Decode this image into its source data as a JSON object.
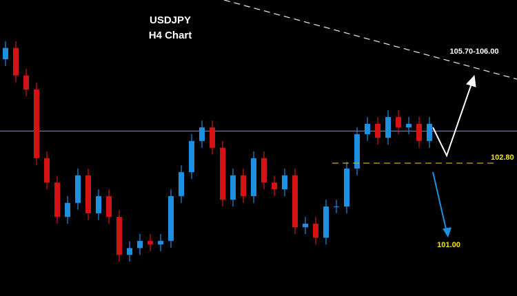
{
  "chart_data": {
    "type": "candlestick",
    "title": "USDJPY",
    "subtitle": "H4 Chart",
    "ylim": [
      99.86,
      106.41
    ],
    "up_color": "#1e90e0",
    "down_color": "#d41414",
    "open": [
      105.1,
      105.35,
      104.74,
      104.43,
      102.91,
      102.37,
      101.61,
      101.92,
      102.53,
      101.69,
      102.07,
      101.61,
      100.77,
      100.92,
      101.08,
      101.0,
      101.08,
      102.07,
      102.6,
      103.29,
      103.59,
      103.14,
      101.99,
      102.53,
      102.07,
      102.91,
      102.37,
      102.22,
      102.53,
      101.38,
      101.46,
      101.15,
      101.84,
      101.84,
      102.68,
      103.44,
      103.67,
      103.36,
      103.82,
      103.59,
      103.67,
      103.29
    ],
    "high": [
      105.5,
      105.5,
      104.89,
      104.58,
      103.06,
      102.52,
      102.07,
      102.68,
      102.68,
      102.22,
      102.22,
      101.76,
      101.07,
      101.23,
      101.23,
      101.23,
      102.22,
      102.75,
      103.44,
      103.74,
      103.74,
      103.29,
      102.68,
      102.68,
      103.06,
      103.06,
      102.52,
      102.68,
      102.68,
      101.61,
      101.61,
      101.99,
      101.99,
      102.83,
      103.59,
      103.82,
      103.82,
      103.97,
      103.97,
      103.82,
      103.82,
      103.82
    ],
    "low": [
      104.95,
      104.59,
      104.28,
      102.76,
      102.22,
      101.46,
      101.46,
      101.77,
      101.54,
      101.54,
      101.46,
      100.62,
      100.62,
      100.77,
      100.85,
      100.85,
      100.93,
      101.92,
      102.45,
      103.14,
      102.99,
      101.84,
      101.84,
      101.92,
      101.92,
      102.22,
      102.07,
      102.07,
      101.23,
      101.23,
      101.0,
      101.0,
      101.69,
      101.69,
      102.53,
      103.29,
      103.21,
      103.21,
      103.44,
      103.44,
      103.14,
      103.14
    ],
    "close": [
      105.35,
      104.74,
      104.43,
      102.91,
      102.37,
      101.61,
      101.92,
      102.53,
      101.69,
      102.07,
      101.61,
      100.77,
      100.92,
      101.08,
      101.0,
      101.08,
      102.07,
      102.6,
      103.29,
      103.59,
      103.14,
      101.99,
      102.53,
      102.07,
      102.91,
      102.37,
      102.22,
      102.53,
      101.38,
      101.46,
      101.15,
      101.84,
      101.84,
      102.68,
      103.44,
      103.67,
      103.36,
      103.82,
      103.59,
      103.67,
      103.29,
      103.67
    ],
    "reference_line": {
      "value": 103.51,
      "color": "#8a90b8"
    },
    "support": {
      "value": 102.8,
      "label": "102.80",
      "color": "#c8b400"
    },
    "target": {
      "value": 101,
      "label": "101.00",
      "color": "#f5e500"
    },
    "resistance_label": "105.70-106.00"
  }
}
